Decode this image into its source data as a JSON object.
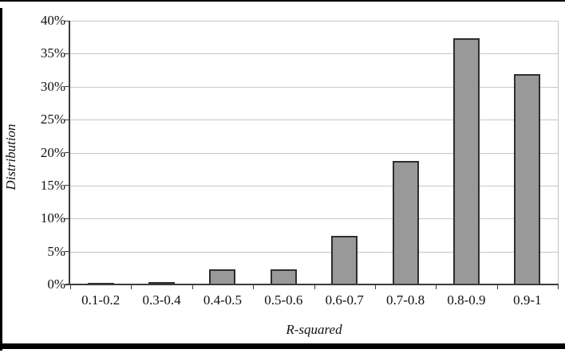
{
  "chart_data": {
    "type": "bar",
    "title": "",
    "xlabel": "R-squared",
    "ylabel": "Distribution",
    "categories": [
      "0.1-0.2",
      "0.3-0.4",
      "0.4-0.5",
      "0.5-0.6",
      "0.6-0.7",
      "0.7-0.8",
      "0.8-0.9",
      "0.9-1"
    ],
    "values": [
      0.2,
      0.4,
      2.3,
      2.3,
      7.4,
      18.7,
      37.3,
      31.9
    ],
    "ylim": [
      0,
      40
    ],
    "ytick_step": 5,
    "ytick_suffix": "%",
    "ytick_labels": [
      "0%",
      "5%",
      "10%",
      "15%",
      "20%",
      "25%",
      "30%",
      "35%",
      "40%"
    ],
    "grid": true,
    "legend_position": "none",
    "colors": {
      "bar_fill": "#999999",
      "bar_border": "#2e2e2e",
      "gridline": "#c6c6c6",
      "axis": "#3a3a3a",
      "text": "#111111",
      "frame": "#000000"
    }
  }
}
